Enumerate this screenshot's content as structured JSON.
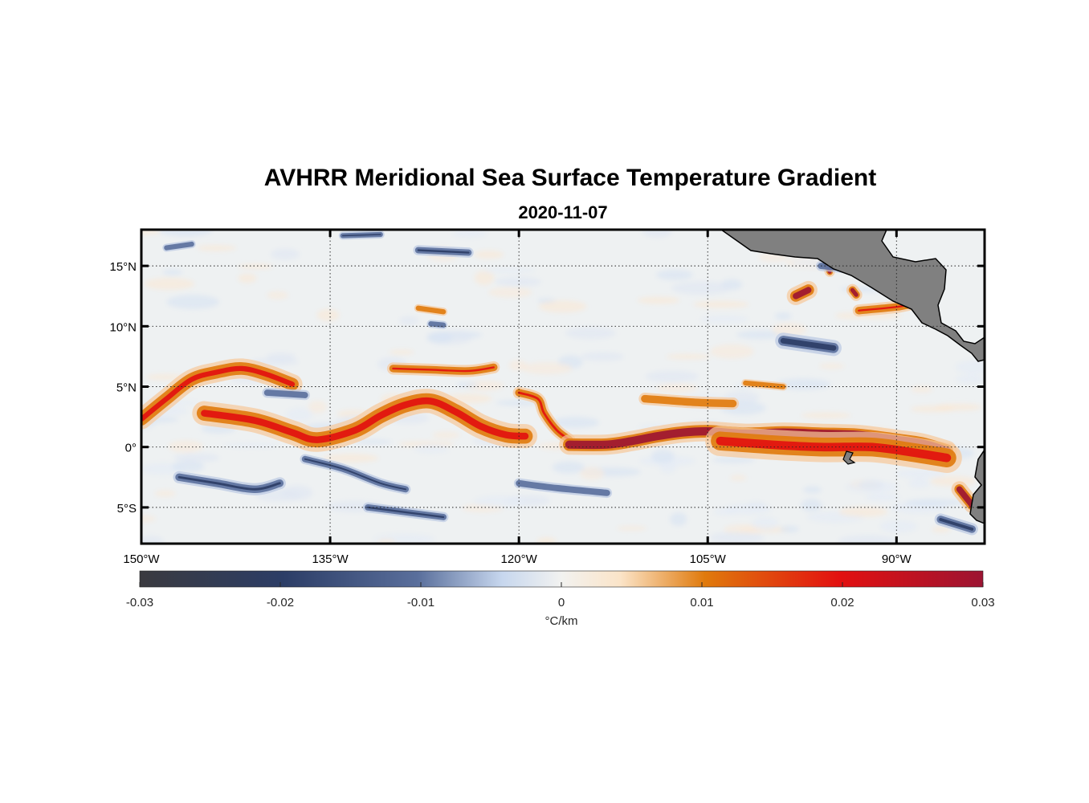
{
  "title": "AVHRR Meridional Sea Surface Temperature Gradient",
  "subtitle": "2020-11-07",
  "map": {
    "lon_range": [
      -150,
      -83
    ],
    "lat_range": [
      -8,
      18
    ],
    "grid": "dotted",
    "land_color": "#808080",
    "lon_ticks": [
      {
        "value": -150,
        "label": "150°W"
      },
      {
        "value": -135,
        "label": "135°W"
      },
      {
        "value": -120,
        "label": "120°W"
      },
      {
        "value": -105,
        "label": "105°W"
      },
      {
        "value": -90,
        "label": "90°W"
      }
    ],
    "lat_ticks": [
      {
        "value": 15,
        "label": "15°N"
      },
      {
        "value": 10,
        "label": "10°N"
      },
      {
        "value": 5,
        "label": "5°N"
      },
      {
        "value": 0,
        "label": "0°"
      },
      {
        "value": -5,
        "label": "5°S"
      }
    ],
    "features": [
      {
        "type": "warm",
        "points": [
          [
            -150,
            2.3
          ],
          [
            -148,
            4
          ],
          [
            -146,
            5.6
          ],
          [
            -144,
            6.2
          ],
          [
            -142,
            6.5
          ],
          [
            -140,
            6.0
          ],
          [
            -138,
            5.2
          ]
        ],
        "strength": 0.7,
        "width": 1.0
      },
      {
        "type": "warm",
        "points": [
          [
            -145,
            2.8
          ],
          [
            -141,
            2.2
          ],
          [
            -138,
            1.2
          ],
          [
            -136,
            0.6
          ],
          [
            -133,
            1.4
          ],
          [
            -131,
            2.6
          ],
          [
            -129,
            3.5
          ],
          [
            -127,
            3.8
          ],
          [
            -125,
            2.9
          ],
          [
            -123,
            1.7
          ],
          [
            -121,
            1.0
          ],
          [
            -119.5,
            0.9
          ]
        ],
        "strength": 0.75,
        "width": 1.2
      },
      {
        "type": "warm",
        "points": [
          [
            -130,
            6.5
          ],
          [
            -127,
            6.4
          ],
          [
            -124,
            6.3
          ],
          [
            -122,
            6.6
          ]
        ],
        "strength": 0.55,
        "width": 0.6
      },
      {
        "type": "warm",
        "points": [
          [
            -120,
            4.5
          ],
          [
            -118.5,
            4.0
          ],
          [
            -118,
            2.8
          ],
          [
            -117,
            1.4
          ],
          [
            -116,
            0.6
          ]
        ],
        "strength": 0.6,
        "width": 0.6
      },
      {
        "type": "warm",
        "points": [
          [
            -116,
            0.2
          ],
          [
            -113,
            0.2
          ],
          [
            -111,
            0.5
          ],
          [
            -109,
            0.9
          ],
          [
            -107,
            1.2
          ],
          [
            -105,
            1.3
          ],
          [
            -102,
            1.1
          ],
          [
            -99,
            1.2
          ],
          [
            -96,
            1.1
          ],
          [
            -93,
            1.0
          ],
          [
            -90,
            0.6
          ],
          [
            -88,
            0.3
          ],
          [
            -86,
            -0.3
          ]
        ],
        "strength": 0.95,
        "width": 1.0
      },
      {
        "type": "warm",
        "points": [
          [
            -104,
            0.5
          ],
          [
            -100,
            0.2
          ],
          [
            -96,
            0.0
          ],
          [
            -92,
            0.0
          ],
          [
            -89,
            -0.4
          ],
          [
            -86,
            -0.9
          ]
        ],
        "strength": 0.75,
        "width": 1.5
      },
      {
        "type": "warm",
        "points": [
          [
            -85,
            -3.5
          ],
          [
            -84,
            -4.8
          ]
        ],
        "strength": 0.9,
        "width": 0.8
      },
      {
        "type": "warm",
        "points": [
          [
            -98,
            12.5
          ],
          [
            -97,
            13.0
          ]
        ],
        "strength": 0.85,
        "width": 0.9
      },
      {
        "type": "warm",
        "points": [
          [
            -95.5,
            15.0
          ],
          [
            -95.3,
            14.5
          ]
        ],
        "strength": 0.9,
        "width": 0.5
      },
      {
        "type": "warm",
        "points": [
          [
            -93.5,
            13.0
          ],
          [
            -93.2,
            12.6
          ]
        ],
        "strength": 0.85,
        "width": 0.6
      },
      {
        "type": "warm",
        "points": [
          [
            -93,
            11.3
          ],
          [
            -90,
            11.6
          ],
          [
            -88,
            11.9
          ],
          [
            -86,
            11.2
          ]
        ],
        "strength": 0.55,
        "width": 0.6
      },
      {
        "type": "warm",
        "points": [
          [
            -110,
            4.0
          ],
          [
            -106,
            3.7
          ],
          [
            -103,
            3.6
          ]
        ],
        "strength": 0.3,
        "width": 0.6
      },
      {
        "type": "warm",
        "points": [
          [
            -102,
            5.3
          ],
          [
            -99,
            5.0
          ]
        ],
        "strength": 0.3,
        "width": 0.4
      },
      {
        "type": "warm",
        "points": [
          [
            -128,
            11.5
          ],
          [
            -126,
            11.2
          ]
        ],
        "strength": 0.4,
        "width": 0.4
      },
      {
        "type": "cold",
        "points": [
          [
            -147,
            -2.5
          ],
          [
            -144,
            -3.0
          ],
          [
            -141,
            -3.5
          ],
          [
            -139,
            -3.0
          ]
        ],
        "strength": 0.6,
        "width": 0.6
      },
      {
        "type": "cold",
        "points": [
          [
            -137,
            -1.0
          ],
          [
            -134,
            -1.8
          ],
          [
            -131,
            -3.0
          ],
          [
            -129,
            -3.5
          ]
        ],
        "strength": 0.55,
        "width": 0.5
      },
      {
        "type": "cold",
        "points": [
          [
            -132,
            -5.0
          ],
          [
            -129,
            -5.4
          ],
          [
            -126,
            -5.8
          ]
        ],
        "strength": 0.6,
        "width": 0.5
      },
      {
        "type": "cold",
        "points": [
          [
            -120,
            -3.0
          ],
          [
            -117,
            -3.4
          ],
          [
            -113,
            -3.8
          ]
        ],
        "strength": 0.5,
        "width": 0.5
      },
      {
        "type": "cold",
        "points": [
          [
            -148,
            16.5
          ],
          [
            -146,
            16.8
          ]
        ],
        "strength": 0.45,
        "width": 0.4
      },
      {
        "type": "cold",
        "points": [
          [
            -134,
            17.5
          ],
          [
            -131,
            17.6
          ]
        ],
        "strength": 0.55,
        "width": 0.4
      },
      {
        "type": "cold",
        "points": [
          [
            -128,
            16.3
          ],
          [
            -124,
            16.1
          ]
        ],
        "strength": 0.6,
        "width": 0.5
      },
      {
        "type": "cold",
        "points": [
          [
            -140,
            4.5
          ],
          [
            -137,
            4.3
          ]
        ],
        "strength": 0.45,
        "width": 0.5
      },
      {
        "type": "cold",
        "points": [
          [
            -127,
            10.2
          ],
          [
            -126,
            10.1
          ]
        ],
        "strength": 0.45,
        "width": 0.4
      },
      {
        "type": "cold",
        "points": [
          [
            -99,
            8.8
          ],
          [
            -97,
            8.5
          ],
          [
            -95,
            8.2
          ]
        ],
        "strength": 0.85,
        "width": 0.8
      },
      {
        "type": "cold",
        "points": [
          [
            -96,
            15.0
          ],
          [
            -94,
            14.8
          ]
        ],
        "strength": 0.5,
        "width": 0.5
      },
      {
        "type": "cold",
        "points": [
          [
            -86.5,
            -6.0
          ],
          [
            -84,
            -6.8
          ]
        ],
        "strength": 0.7,
        "width": 0.6
      }
    ]
  },
  "colorbar": {
    "range": [
      -0.03,
      0.03
    ],
    "ticks": [
      "-0.03",
      "-0.02",
      "-0.01",
      "0",
      "0.01",
      "0.02",
      "0.03"
    ],
    "label": "°C/km"
  },
  "colors": {
    "cold_extreme": "#3a3a3f",
    "cold": "#2c3d66",
    "neutral": "#f2f2f0",
    "warm": "#e07a0c",
    "hot": "#e21010",
    "hot_extreme": "#9c1432"
  }
}
